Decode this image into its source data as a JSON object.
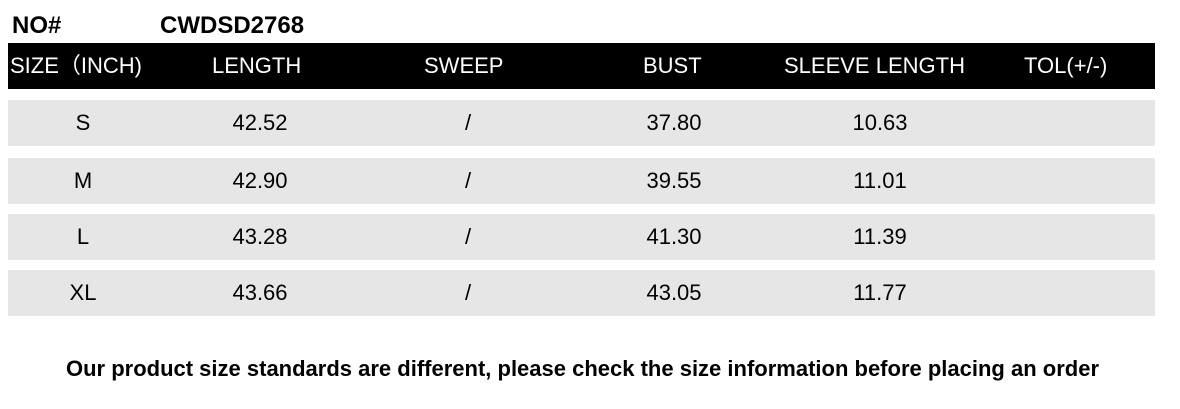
{
  "no_label": "NO#",
  "product_code": "CWDSD2768",
  "headers": [
    "SIZE（INCH)",
    "LENGTH",
    "SWEEP",
    "BUST",
    "SLEEVE LENGTH",
    "TOL(+/-)"
  ],
  "rows": [
    [
      "S",
      "42.52",
      "/",
      "37.80",
      "10.63",
      ""
    ],
    [
      "M",
      "42.90",
      "/",
      "39.55",
      "11.01",
      ""
    ],
    [
      "L",
      "43.28",
      "/",
      "41.30",
      "11.39",
      ""
    ],
    [
      "XL",
      "43.66",
      "/",
      "43.05",
      "11.77",
      ""
    ]
  ],
  "note": "Our product size standards are different, please check the size information before placing an order"
}
